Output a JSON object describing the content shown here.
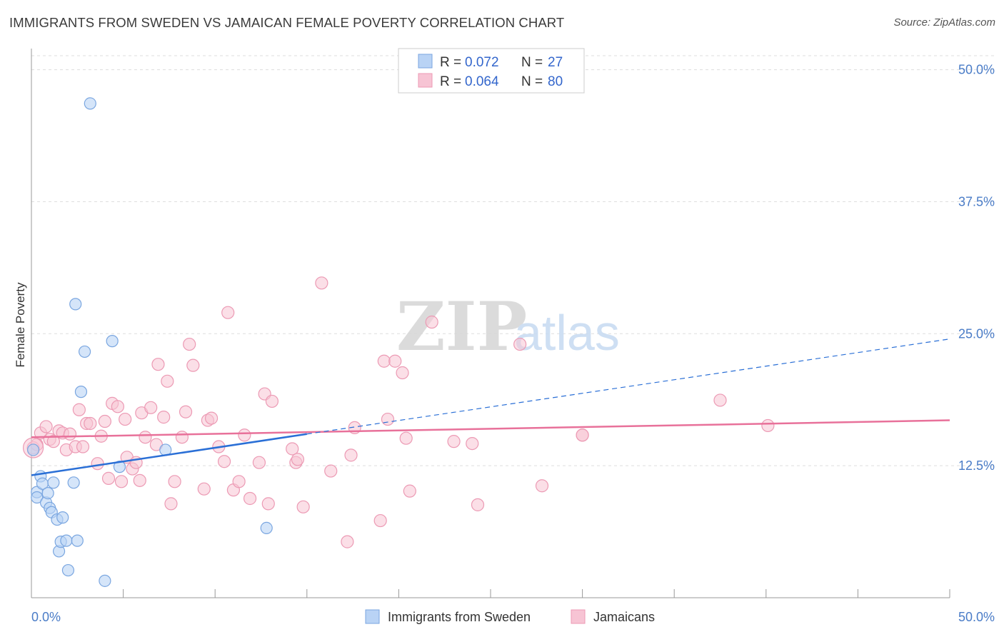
{
  "title": "IMMIGRANTS FROM SWEDEN VS JAMAICAN FEMALE POVERTY CORRELATION CHART",
  "source": "Source: ZipAtlas.com",
  "watermark": {
    "zip": "ZIP",
    "atlas": "atlas"
  },
  "colors": {
    "blue_fill": "#b9d3f5",
    "blue_stroke": "#7aa6e0",
    "blue_line": "#2a6fd6",
    "pink_fill": "#f7c4d4",
    "pink_stroke": "#ec9ab4",
    "pink_line": "#e8719a",
    "tick_text": "#4a7cc7",
    "grid": "#dddddd"
  },
  "legend": {
    "rows": [
      {
        "r_label": "R =",
        "r_value": "0.072",
        "n_label": "N =",
        "n_value": "27",
        "series": "blue"
      },
      {
        "r_label": "R =",
        "r_value": "0.064",
        "n_label": "N =",
        "n_value": "80",
        "series": "pink"
      }
    ]
  },
  "chart_data": {
    "type": "scatter",
    "title": "IMMIGRANTS FROM SWEDEN VS JAMAICAN FEMALE POVERTY CORRELATION CHART",
    "xlabel": "",
    "ylabel": "Female Poverty",
    "xlim": [
      0,
      50
    ],
    "ylim": [
      0,
      52
    ],
    "x_tick_labels": [
      "0.0%",
      "50.0%"
    ],
    "y_ticks": [
      12.5,
      25.0,
      37.5,
      50.0
    ],
    "y_tick_labels": [
      "12.5%",
      "25.0%",
      "37.5%",
      "50.0%"
    ],
    "grid": true,
    "series": [
      {
        "name": "Immigrants from Sweden",
        "color": "blue",
        "points": [
          [
            0.1,
            14.0
          ],
          [
            0.3,
            10.0
          ],
          [
            0.3,
            9.5
          ],
          [
            0.5,
            11.5
          ],
          [
            0.6,
            10.8
          ],
          [
            0.8,
            9.0
          ],
          [
            0.9,
            9.9
          ],
          [
            1.0,
            8.5
          ],
          [
            1.1,
            8.1
          ],
          [
            1.2,
            10.9
          ],
          [
            1.4,
            7.4
          ],
          [
            1.5,
            4.4
          ],
          [
            1.6,
            5.3
          ],
          [
            1.7,
            7.6
          ],
          [
            1.9,
            5.4
          ],
          [
            2.0,
            2.6
          ],
          [
            2.3,
            10.9
          ],
          [
            2.4,
            27.8
          ],
          [
            2.5,
            5.4
          ],
          [
            2.7,
            19.5
          ],
          [
            2.9,
            23.3
          ],
          [
            3.2,
            46.8
          ],
          [
            4.0,
            1.6
          ],
          [
            4.4,
            24.3
          ],
          [
            4.8,
            12.4
          ],
          [
            7.3,
            14.0
          ],
          [
            12.8,
            6.6
          ]
        ],
        "trend": {
          "x": [
            0,
            15
          ],
          "y": [
            11.6,
            15.5
          ],
          "dashed_to": {
            "x": 50,
            "y": 24.5
          }
        }
      },
      {
        "name": "Jamaicans",
        "color": "pink",
        "points": [
          [
            0.1,
            14.2
          ],
          [
            0.3,
            14.5
          ],
          [
            0.5,
            15.6
          ],
          [
            0.8,
            16.2
          ],
          [
            1.0,
            15.0
          ],
          [
            1.2,
            14.8
          ],
          [
            1.5,
            15.8
          ],
          [
            1.7,
            15.6
          ],
          [
            1.9,
            14.0
          ],
          [
            2.1,
            15.5
          ],
          [
            2.4,
            14.3
          ],
          [
            2.6,
            17.8
          ],
          [
            2.8,
            14.3
          ],
          [
            3.0,
            16.5
          ],
          [
            3.2,
            16.5
          ],
          [
            3.6,
            12.7
          ],
          [
            3.8,
            15.3
          ],
          [
            4.0,
            16.7
          ],
          [
            4.2,
            11.3
          ],
          [
            4.4,
            18.4
          ],
          [
            4.7,
            18.1
          ],
          [
            4.9,
            11.0
          ],
          [
            5.1,
            16.9
          ],
          [
            5.2,
            13.3
          ],
          [
            5.5,
            12.2
          ],
          [
            5.7,
            12.8
          ],
          [
            5.9,
            11.1
          ],
          [
            6.0,
            17.5
          ],
          [
            6.2,
            15.2
          ],
          [
            6.5,
            18.0
          ],
          [
            6.8,
            14.5
          ],
          [
            6.9,
            22.1
          ],
          [
            7.2,
            17.1
          ],
          [
            7.4,
            20.5
          ],
          [
            7.6,
            8.9
          ],
          [
            7.8,
            11.0
          ],
          [
            8.2,
            15.2
          ],
          [
            8.4,
            17.6
          ],
          [
            8.6,
            24.0
          ],
          [
            8.8,
            22.0
          ],
          [
            9.4,
            10.3
          ],
          [
            9.6,
            16.8
          ],
          [
            9.8,
            17.0
          ],
          [
            10.2,
            14.3
          ],
          [
            10.5,
            12.9
          ],
          [
            10.7,
            27.0
          ],
          [
            11.0,
            10.2
          ],
          [
            11.3,
            11.0
          ],
          [
            11.6,
            15.4
          ],
          [
            11.9,
            9.4
          ],
          [
            12.4,
            12.8
          ],
          [
            12.7,
            19.3
          ],
          [
            12.9,
            8.9
          ],
          [
            13.1,
            18.6
          ],
          [
            14.2,
            14.1
          ],
          [
            14.4,
            12.8
          ],
          [
            14.8,
            8.6
          ],
          [
            15.8,
            29.8
          ],
          [
            16.3,
            12.0
          ],
          [
            17.2,
            5.3
          ],
          [
            17.4,
            13.5
          ],
          [
            17.6,
            16.1
          ],
          [
            19.0,
            7.3
          ],
          [
            19.2,
            22.4
          ],
          [
            19.4,
            16.9
          ],
          [
            19.8,
            22.4
          ],
          [
            20.2,
            21.3
          ],
          [
            20.4,
            15.1
          ],
          [
            20.6,
            10.1
          ],
          [
            21.8,
            26.1
          ],
          [
            23.0,
            14.8
          ],
          [
            24.0,
            14.6
          ],
          [
            24.3,
            8.8
          ],
          [
            26.6,
            24.0
          ],
          [
            27.8,
            10.6
          ],
          [
            30.0,
            15.4
          ],
          [
            37.5,
            18.7
          ],
          [
            40.1,
            16.3
          ],
          [
            30.0,
            15.4
          ],
          [
            14.5,
            13.1
          ]
        ],
        "trend": {
          "x": [
            0,
            50
          ],
          "y": [
            15.2,
            16.8
          ]
        }
      }
    ]
  },
  "bottom_legend": [
    {
      "label": "Immigrants from Sweden",
      "series": "blue"
    },
    {
      "label": "Jamaicans",
      "series": "pink"
    }
  ]
}
